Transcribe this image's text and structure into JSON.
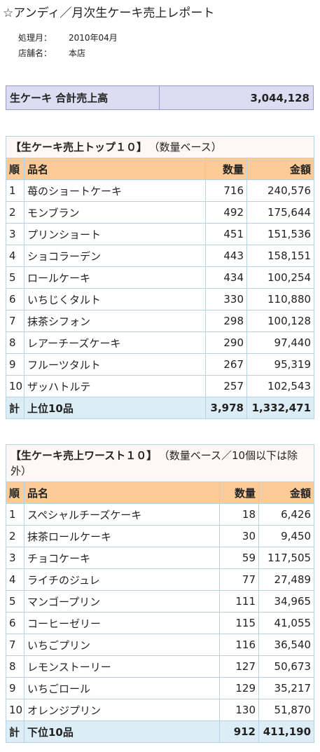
{
  "header": {
    "title": "☆アンディ／月次生ケーキ売上レポート",
    "meta": [
      {
        "label": "処理月：",
        "value": "2010年04月"
      },
      {
        "label": "店舗名：",
        "value": "本店"
      }
    ]
  },
  "total": {
    "label": "生ケーキ 合計売上高",
    "value": "3,044,128"
  },
  "tables": [
    {
      "caption": "【生ケーキ売上トップ１０】",
      "note": "（数量ベース）",
      "columns": [
        "順",
        "品名",
        "数量",
        "金額"
      ],
      "rows": [
        [
          "1",
          "苺のショートケーキ",
          "716",
          "240,576"
        ],
        [
          "2",
          "モンブラン",
          "492",
          "175,644"
        ],
        [
          "3",
          "プリンショート",
          "451",
          "151,536"
        ],
        [
          "4",
          "ショコラーデン",
          "443",
          "158,151"
        ],
        [
          "5",
          "ロールケーキ",
          "434",
          "100,254"
        ],
        [
          "6",
          "いちじくタルト",
          "330",
          "110,880"
        ],
        [
          "7",
          "抹茶シフォン",
          "298",
          "100,128"
        ],
        [
          "8",
          "レアーチーズケーキ",
          "290",
          "97,440"
        ],
        [
          "9",
          "フルーツタルト",
          "267",
          "95,319"
        ],
        [
          "10",
          "ザッハトルテ",
          "257",
          "102,543"
        ]
      ],
      "footer": [
        "計",
        "上位10品",
        "3,978",
        "1,332,471"
      ]
    },
    {
      "caption": "【生ケーキ売上ワースト１０】",
      "note": "（数量ベース／10個以下は除外）",
      "columns": [
        "順",
        "品名",
        "数量",
        "金額"
      ],
      "rows": [
        [
          "1",
          "スペシャルチーズケーキ",
          "18",
          "6,426"
        ],
        [
          "2",
          "抹茶ロールケーキ",
          "30",
          "9,450"
        ],
        [
          "3",
          "チョコケーキ",
          "59",
          "117,505"
        ],
        [
          "4",
          "ライチのジュレ",
          "77",
          "27,489"
        ],
        [
          "5",
          "マンゴープリン",
          "111",
          "34,965"
        ],
        [
          "6",
          "コーヒーゼリー",
          "115",
          "41,055"
        ],
        [
          "7",
          "いちごプリン",
          "116",
          "36,540"
        ],
        [
          "8",
          "レモンストーリー",
          "127",
          "50,673"
        ],
        [
          "9",
          "いちごロール",
          "129",
          "35,217"
        ],
        [
          "10",
          "オレンジプリン",
          "130",
          "51,870"
        ]
      ],
      "footer": [
        "計",
        "下位10品",
        "912",
        "411,190"
      ]
    }
  ]
}
